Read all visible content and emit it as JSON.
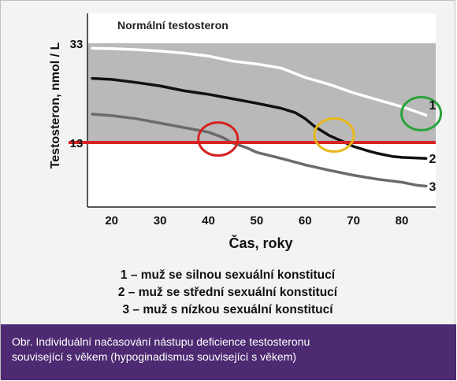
{
  "chart_data": {
    "type": "line",
    "title": "Normální testosteron",
    "xlabel": "Čas, roky",
    "ylabel": "Testosteron, nmol / L",
    "xlim": [
      15,
      87
    ],
    "ylim": [
      0,
      39
    ],
    "x_ticks": [
      "20",
      "30",
      "40",
      "50",
      "60",
      "70",
      "80"
    ],
    "y_ticks": [
      "13",
      "33"
    ],
    "normal_band": [
      13,
      33
    ],
    "threshold": 13,
    "series": [
      {
        "name": "1",
        "color": "#ffffff",
        "x": [
          16,
          20,
          25,
          30,
          35,
          40,
          45,
          50,
          55,
          60,
          65,
          70,
          75,
          80,
          83,
          85
        ],
        "y": [
          32,
          31.9,
          31.7,
          31.4,
          31.0,
          30.4,
          29.4,
          28.8,
          28.0,
          26.1,
          24.7,
          23.0,
          21.6,
          20.2,
          19.2,
          18.5
        ]
      },
      {
        "name": "2",
        "color": "#111111",
        "x": [
          16,
          20,
          25,
          30,
          35,
          40,
          45,
          50,
          55,
          58,
          60,
          62,
          65,
          68,
          70,
          73,
          75,
          78,
          80,
          85
        ],
        "y": [
          25.9,
          25.7,
          25.1,
          24.4,
          23.4,
          22.7,
          21.8,
          20.9,
          19.9,
          19.0,
          17.8,
          16.2,
          14.4,
          13.1,
          12.2,
          11.3,
          10.8,
          10.2,
          10.0,
          9.8
        ]
      },
      {
        "name": "3",
        "color": "#6b6b6b",
        "x": [
          16,
          20,
          25,
          30,
          35,
          40,
          43,
          45,
          48,
          50,
          55,
          60,
          65,
          70,
          75,
          80,
          83,
          85
        ],
        "y": [
          18.7,
          18.4,
          17.8,
          16.9,
          16.0,
          15.1,
          14.0,
          12.9,
          11.9,
          11.0,
          9.8,
          8.5,
          7.4,
          6.4,
          5.6,
          5.0,
          4.4,
          4.2
        ]
      }
    ],
    "annotations": [
      {
        "label": "circle",
        "color": "#d62020",
        "x": 42,
        "y": 13.7
      },
      {
        "label": "circle",
        "color": "#e8b71a",
        "x": 66,
        "y": 14.5
      },
      {
        "label": "circle",
        "color": "#2aa33a",
        "x": 84,
        "y": 18.8
      }
    ]
  },
  "legend": {
    "line1": "1 – muž se silnou sexuální konstitucí",
    "line2": "2 – muž se střední sexuální konstitucí",
    "line3": "3 – muž s nízkou sexuální konstitucí"
  },
  "caption": {
    "line1": "Obr. Individuální načasování nástupu deficience testosteronu",
    "line2": "související s věkem (hypoginadismus související s věkem)"
  }
}
